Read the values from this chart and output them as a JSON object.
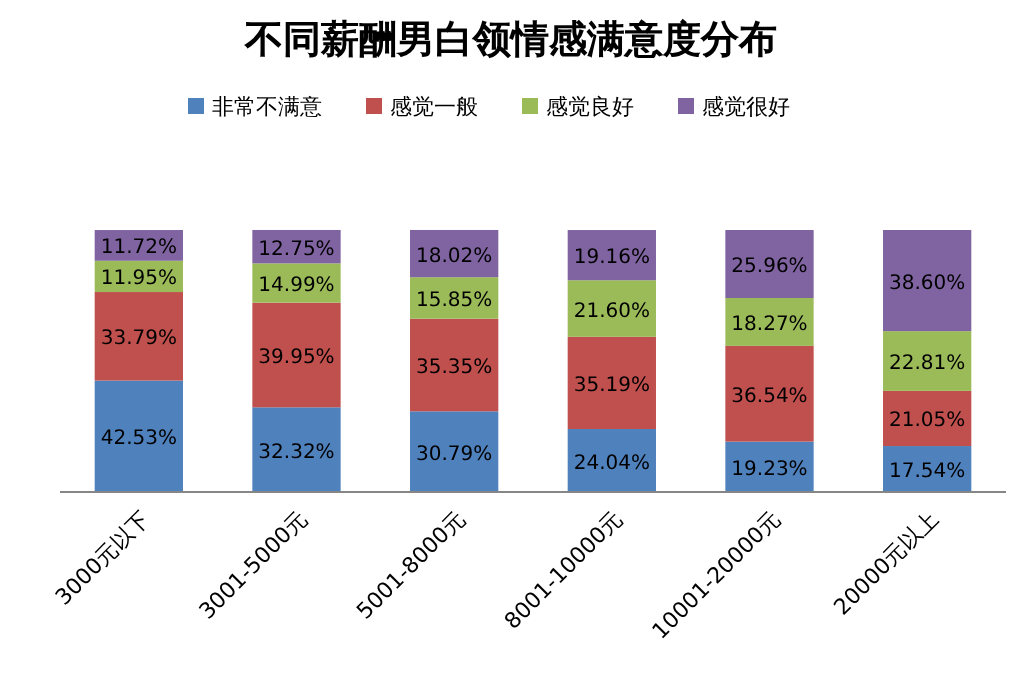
{
  "chart_data": {
    "type": "bar",
    "stacked": true,
    "title": "不同薪酬男白领情感满意度分布",
    "categories": [
      "3000元以下",
      "3001-5000元",
      "5001-8000元",
      "8001-10000元",
      "10001-20000元",
      "20000元以上"
    ],
    "ylim": [
      0,
      100
    ],
    "tick_labels": "x",
    "legend": "top",
    "series": [
      {
        "name": "非常不满意",
        "color": "#4f81bd",
        "values": [
          42.53,
          32.32,
          30.79,
          24.04,
          19.23,
          17.54
        ],
        "value_labels": [
          "42.53%",
          "32.32%",
          "30.79%",
          "24.04%",
          "19.23%",
          "17.54%"
        ]
      },
      {
        "name": "感觉一般",
        "color": "#c0504d",
        "values": [
          33.79,
          39.95,
          35.35,
          35.19,
          36.54,
          21.05
        ],
        "value_labels": [
          "33.79%",
          "39.95%",
          "35.35%",
          "35.19%",
          "36.54%",
          "21.05%"
        ]
      },
      {
        "name": "感觉良好",
        "color": "#9bbb59",
        "values": [
          11.95,
          14.99,
          15.85,
          21.6,
          18.27,
          22.81
        ],
        "value_labels": [
          "11.95%",
          "14.99%",
          "15.85%",
          "21.60%",
          "18.27%",
          "22.81%"
        ]
      },
      {
        "name": "感觉很好",
        "color": "#8064a2",
        "values": [
          11.72,
          12.75,
          18.02,
          19.16,
          25.96,
          38.6
        ],
        "value_labels": [
          "11.72%",
          "12.75%",
          "18.02%",
          "19.16%",
          "25.96%",
          "38.60%"
        ]
      }
    ]
  }
}
